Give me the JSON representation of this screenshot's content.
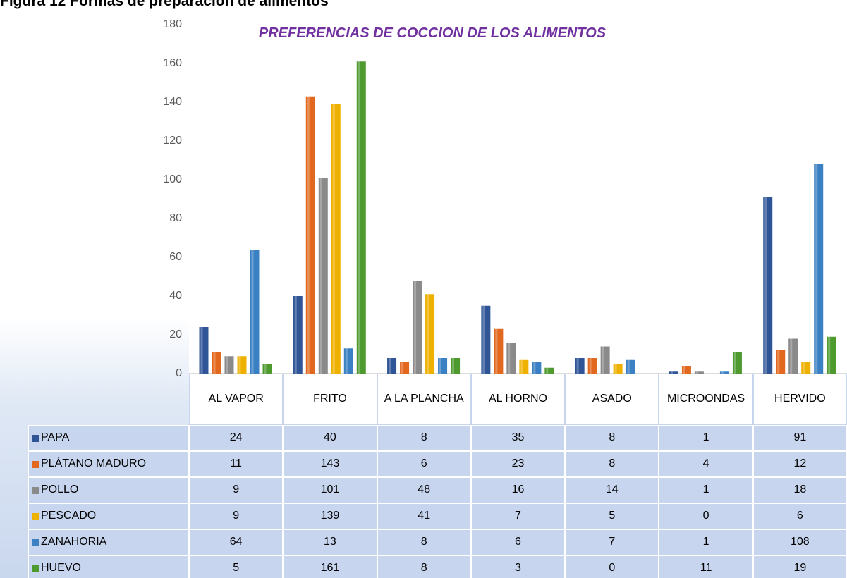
{
  "caption": "Figura 12 Formas de preparación de alimentos",
  "chart_data": {
    "type": "bar",
    "title": "PREFERENCIAS DE COCCION DE LOS ALIMENTOS",
    "categories": [
      "AL VAPOR",
      "FRITO",
      "A LA PLANCHA",
      "AL HORNO",
      "ASADO",
      "MICROONDAS",
      "HERVIDO"
    ],
    "series": [
      {
        "name": "PAPA",
        "color": "#2f5597",
        "values": [
          24,
          40,
          8,
          35,
          8,
          1,
          91
        ]
      },
      {
        "name": "PLÁTANO MADURO",
        "color": "#e2681f",
        "values": [
          11,
          143,
          6,
          23,
          8,
          4,
          12
        ]
      },
      {
        "name": "POLLO",
        "color": "#8a8a8a",
        "values": [
          9,
          101,
          48,
          16,
          14,
          1,
          18
        ]
      },
      {
        "name": "PESCADO",
        "color": "#efb100",
        "values": [
          9,
          139,
          41,
          7,
          5,
          0,
          6
        ]
      },
      {
        "name": "ZANAHORIA",
        "color": "#3b80c2",
        "values": [
          64,
          13,
          8,
          6,
          7,
          1,
          108
        ]
      },
      {
        "name": "HUEVO",
        "color": "#4e9a2f",
        "values": [
          5,
          161,
          8,
          3,
          0,
          11,
          19
        ]
      }
    ],
    "ylim": [
      0,
      180
    ],
    "yticks": [
      0,
      20,
      40,
      60,
      80,
      100,
      120,
      140,
      160,
      180
    ],
    "grid": false
  }
}
